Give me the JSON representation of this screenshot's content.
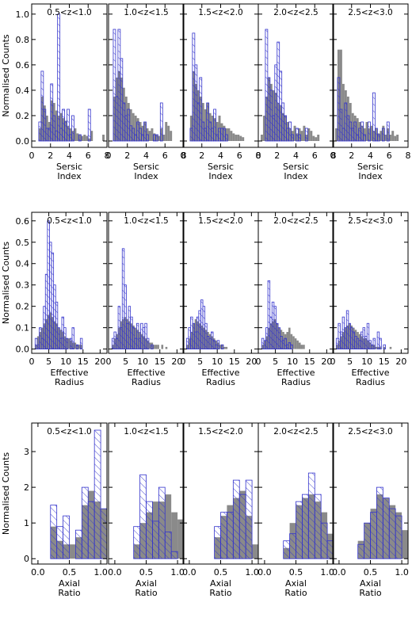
{
  "figure": {
    "ylabel": "Normalised Counts",
    "colors": {
      "grey_fill": "#8a8a8a",
      "blue_outline": "#3333cc",
      "axes": "#000000"
    }
  },
  "chart_data": [
    {
      "type": "bar",
      "row": "sersic",
      "xlabel": [
        "Sersic",
        "Index"
      ],
      "ylabel": "Normalised Counts",
      "xlim": [
        0,
        8
      ],
      "ylim": [
        -0.05,
        1.08
      ],
      "xticks": [
        "0",
        "2",
        "4",
        "6",
        "8"
      ],
      "yticks": [
        "0.0",
        "0.2",
        "0.4",
        "0.6",
        "0.8",
        "1.0"
      ],
      "yticks_values": [
        0,
        0.2,
        0.4,
        0.6,
        0.8,
        1.0
      ],
      "panels": [
        {
          "label": "0.5<z<1.0",
          "bin_start": 0.75,
          "bin_width": 0.25,
          "grey": [
            0.1,
            0.35,
            0.28,
            0.2,
            0.15,
            0.32,
            0.3,
            0.24,
            0.2,
            0.22,
            0.18,
            0.16,
            0.12,
            0.1,
            0.08,
            0.1,
            0.06,
            0.05,
            0.04,
            0.05,
            0.04,
            0.02,
            0.08,
            0,
            0,
            0,
            0,
            0.05
          ],
          "blue": [
            0.15,
            0.55,
            0.25,
            0.1,
            0.1,
            0.45,
            0.2,
            0.08,
            1.0,
            0.1,
            0.25,
            0.15,
            0.25,
            0.05,
            0.2,
            0.0,
            0.0,
            0.05,
            0.0,
            0.0,
            0.0,
            0.25,
            0.0,
            0,
            0,
            0,
            0,
            0
          ]
        },
        {
          "label": "1.0<z<1.5",
          "bin_start": 0.25,
          "bin_width": 0.25,
          "grey": [
            0.0,
            0.35,
            0.5,
            0.55,
            0.5,
            0.42,
            0.35,
            0.3,
            0.25,
            0.22,
            0.2,
            0.18,
            0.15,
            0.12,
            0.15,
            0.1,
            0.08,
            0.1,
            0.06,
            0.05,
            0.04,
            0.1,
            0.05,
            0.15,
            0.12,
            0.08
          ],
          "blue": [
            0.0,
            0.88,
            0.35,
            0.88,
            0.65,
            0.3,
            0.2,
            0.25,
            0.12,
            0.1,
            0.05,
            0.15,
            0.1,
            0.05,
            0.15,
            0.05,
            0.0,
            0.0,
            0.05,
            0.05,
            0.0,
            0.3,
            0.0,
            0.0,
            0.0,
            0.0
          ]
        },
        {
          "label": "1.5<z<2.0",
          "bin_start": 0.75,
          "bin_width": 0.25,
          "grey": [
            0.2,
            0.55,
            0.45,
            0.4,
            0.35,
            0.3,
            0.25,
            0.3,
            0.22,
            0.2,
            0.18,
            0.15,
            0.2,
            0.14,
            0.12,
            0.1,
            0.1,
            0.08,
            0.06,
            0.05,
            0.05,
            0.04,
            0.03
          ],
          "blue": [
            0.1,
            0.85,
            0.6,
            0.3,
            0.5,
            0.15,
            0.1,
            0.3,
            0.15,
            0.1,
            0.25,
            0.05,
            0.1,
            0.1,
            0.1,
            0.05,
            0.0,
            0.0,
            0.0,
            0.0,
            0.0,
            0.0,
            0.0
          ]
        },
        {
          "label": "2.0<z<2.5",
          "bin_start": 0.25,
          "bin_width": 0.25,
          "grey": [
            0.05,
            0.2,
            0.35,
            0.5,
            0.45,
            0.4,
            0.38,
            0.3,
            0.28,
            0.22,
            0.2,
            0.15,
            0.1,
            0.08,
            0.12,
            0.06,
            0.1,
            0.08,
            0.12,
            0.05,
            0.1,
            0.08,
            0.04,
            0.03,
            0.05,
            0.0,
            0.0,
            0.0,
            0.0
          ],
          "blue": [
            0.0,
            0.0,
            0.88,
            0.5,
            0.4,
            0.2,
            0.6,
            0.78,
            0.55,
            0.3,
            0.2,
            0.1,
            0.15,
            0.05,
            0.0,
            0.1,
            0.05,
            0.0,
            0.0,
            0.1,
            0.0,
            0.0,
            0.0,
            0.0,
            0.0,
            0.0,
            0.0,
            0.0,
            0.0
          ]
        },
        {
          "label": "2.5<z<3.0",
          "bin_start": 0.25,
          "bin_width": 0.25,
          "grey": [
            0.1,
            0.72,
            0.72,
            0.45,
            0.4,
            0.35,
            0.3,
            0.22,
            0.2,
            0.18,
            0.15,
            0.12,
            0.1,
            0.15,
            0.1,
            0.12,
            0.08,
            0.1,
            0.06,
            0.08,
            0.12,
            0.05,
            0.1,
            0.05,
            0.08,
            0.04,
            0.05
          ],
          "blue": [
            0.0,
            0.5,
            0.25,
            0.1,
            0.3,
            0.2,
            0.15,
            0.1,
            0.15,
            0.05,
            0.1,
            0.15,
            0.05,
            0.0,
            0.15,
            0.0,
            0.38,
            0.1,
            0.05,
            0.0,
            0.1,
            0.0,
            0.15,
            0.0,
            0.0,
            0.0,
            0.0
          ]
        }
      ]
    },
    {
      "type": "bar",
      "row": "radius",
      "xlabel": [
        "Effective",
        "Radius"
      ],
      "ylabel": "Normalised Counts",
      "xlim": [
        0,
        22
      ],
      "ylim": [
        -0.02,
        0.64
      ],
      "xticks": [
        "0",
        "5",
        "10",
        "15",
        "20"
      ],
      "yticks": [
        "0.0",
        "0.1",
        "0.2",
        "0.3",
        "0.4",
        "0.5",
        "0.6"
      ],
      "yticks_values": [
        0,
        0.1,
        0.2,
        0.3,
        0.4,
        0.5,
        0.6
      ],
      "panels": [
        {
          "label": "0.5<z<1.0",
          "bin_start": 1,
          "bin_width": 0.6,
          "grey": [
            0.02,
            0.06,
            0.08,
            0.1,
            0.12,
            0.14,
            0.16,
            0.17,
            0.15,
            0.13,
            0.12,
            0.1,
            0.09,
            0.08,
            0.06,
            0.05,
            0.05,
            0.04,
            0.03,
            0.03,
            0.02,
            0.02,
            0.02
          ],
          "blue": [
            0.05,
            0.02,
            0.1,
            0.05,
            0.2,
            0.35,
            0.6,
            0.5,
            0.45,
            0.3,
            0.22,
            0.1,
            0.05,
            0.15,
            0.1,
            0.05,
            0.0,
            0.05,
            0.1,
            0.0,
            0.02,
            0.0,
            0.05
          ]
        },
        {
          "label": "1.0<z<1.5",
          "bin_start": 1,
          "bin_width": 0.6,
          "grey": [
            0.02,
            0.05,
            0.07,
            0.1,
            0.13,
            0.14,
            0.15,
            0.14,
            0.13,
            0.12,
            0.11,
            0.1,
            0.09,
            0.08,
            0.07,
            0.06,
            0.05,
            0.04,
            0.03,
            0.03,
            0.02,
            0.02,
            0.02,
            0.0,
            0.02,
            0.0,
            0.01
          ],
          "blue": [
            0.05,
            0.08,
            0.05,
            0.2,
            0.1,
            0.47,
            0.3,
            0.12,
            0.2,
            0.15,
            0.1,
            0.05,
            0.12,
            0.05,
            0.12,
            0.1,
            0.12,
            0.05,
            0.0,
            0.02,
            0.0,
            0.0,
            0.0,
            0.0,
            0.0,
            0.0,
            0.0
          ]
        },
        {
          "label": "1.5<z<2.0",
          "bin_start": 1,
          "bin_width": 0.6,
          "grey": [
            0.02,
            0.05,
            0.08,
            0.12,
            0.14,
            0.13,
            0.12,
            0.11,
            0.1,
            0.09,
            0.08,
            0.07,
            0.06,
            0.05,
            0.04,
            0.03,
            0.02,
            0.02,
            0.01,
            0.01
          ],
          "blue": [
            0.05,
            0.1,
            0.15,
            0.12,
            0.08,
            0.15,
            0.18,
            0.23,
            0.2,
            0.12,
            0.06,
            0.05,
            0.08,
            0.04,
            0.02,
            0.04,
            0.0,
            0.02,
            0.0,
            0.0
          ]
        },
        {
          "label": "2.0<z<2.5",
          "bin_start": 1,
          "bin_width": 0.6,
          "grey": [
            0.02,
            0.04,
            0.06,
            0.1,
            0.12,
            0.13,
            0.14,
            0.12,
            0.1,
            0.09,
            0.08,
            0.07,
            0.08,
            0.1,
            0.07,
            0.06,
            0.05,
            0.04,
            0.03,
            0.02,
            0.02
          ],
          "blue": [
            0.05,
            0.04,
            0.1,
            0.32,
            0.15,
            0.22,
            0.2,
            0.12,
            0.1,
            0.06,
            0.04,
            0.05,
            0.02,
            0.03,
            0.02,
            0.0,
            0.0,
            0.0,
            0.0,
            0.0,
            0.0
          ]
        },
        {
          "label": "2.5<z<3.0",
          "bin_start": 1,
          "bin_width": 0.6,
          "grey": [
            0.02,
            0.04,
            0.06,
            0.08,
            0.1,
            0.11,
            0.12,
            0.11,
            0.1,
            0.09,
            0.08,
            0.07,
            0.06,
            0.05,
            0.05,
            0.04,
            0.03,
            0.02,
            0.02,
            0.01,
            0.01,
            0.01,
            0.0,
            0.01,
            0.0,
            0.0,
            0.01,
            0.0,
            0.0,
            0.0
          ],
          "blue": [
            0.05,
            0.12,
            0.08,
            0.15,
            0.1,
            0.18,
            0.12,
            0.1,
            0.08,
            0.06,
            0.05,
            0.04,
            0.08,
            0.1,
            0.06,
            0.12,
            0.04,
            0.02,
            0.05,
            0.0,
            0.08,
            0.05,
            0.0,
            0.02,
            0.0,
            0.0,
            0.0,
            0.0,
            0.0,
            0.0
          ]
        }
      ]
    },
    {
      "type": "bar",
      "row": "axial",
      "xlabel": [
        "Axial",
        "Ratio"
      ],
      "ylabel": "Normalised Counts",
      "xlim": [
        -0.1,
        1.1
      ],
      "ylim": [
        -0.15,
        3.8
      ],
      "xticks": [
        "0.0",
        "0.5",
        "1.0"
      ],
      "xticks_values": [
        0.0,
        0.5,
        1.0
      ],
      "yticks": [
        "0",
        "1",
        "2",
        "3"
      ],
      "yticks_values": [
        0,
        1,
        2,
        3
      ],
      "panels": [
        {
          "label": "0.5<z<1.0",
          "bin_start": 0.2,
          "bin_width": 0.1,
          "grey": [
            0.9,
            0.5,
            0.4,
            0.4,
            0.6,
            1.5,
            1.9,
            1.6,
            1.4
          ],
          "blue": [
            1.5,
            0.9,
            1.2,
            0.0,
            0.8,
            2.0,
            1.6,
            3.6,
            1.4
          ]
        },
        {
          "label": "1.0<z<1.5",
          "bin_start": 0.2,
          "bin_width": 0.1,
          "grey": [
            0.0,
            0.4,
            1.0,
            1.3,
            1.6,
            1.6,
            1.8,
            1.3,
            1.1
          ],
          "blue": [
            0.0,
            0.9,
            2.35,
            1.6,
            1.05,
            2.0,
            0.75,
            0.2,
            0.0
          ]
        },
        {
          "label": "1.5<z<2.0",
          "bin_start": 0.2,
          "bin_width": 0.1,
          "grey": [
            0.0,
            0.0,
            0.6,
            1.2,
            1.5,
            1.7,
            1.9,
            1.2,
            0.4
          ],
          "blue": [
            0.0,
            0.0,
            0.9,
            1.3,
            1.3,
            2.2,
            1.8,
            2.2,
            0.0
          ]
        },
        {
          "label": "2.0<z<2.5",
          "bin_start": 0.2,
          "bin_width": 0.1,
          "grey": [
            0.0,
            0.3,
            1.0,
            1.5,
            1.7,
            1.8,
            1.6,
            1.3,
            0.7
          ],
          "blue": [
            0.0,
            0.5,
            0.7,
            1.6,
            1.8,
            2.4,
            1.8,
            1.0,
            0.5
          ]
        },
        {
          "label": "2.5<z<3.0",
          "bin_start": 0.2,
          "bin_width": 0.1,
          "grey": [
            0.0,
            0.5,
            1.0,
            1.4,
            1.8,
            1.7,
            1.5,
            1.3,
            0.8
          ],
          "blue": [
            0.0,
            0.4,
            1.0,
            1.3,
            2.0,
            1.7,
            1.4,
            1.2,
            0.0
          ]
        }
      ]
    }
  ]
}
